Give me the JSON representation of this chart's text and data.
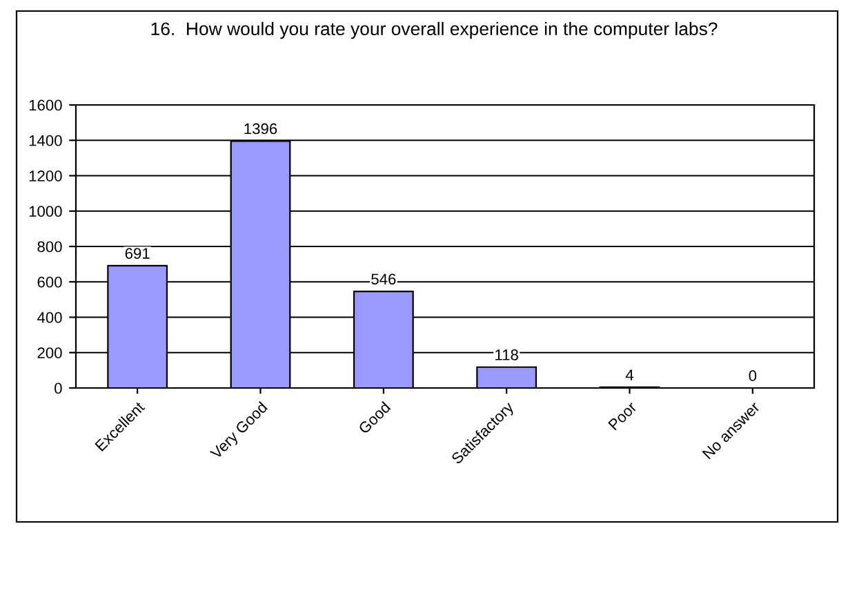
{
  "chart_data": {
    "type": "bar",
    "title": "16.  How would you rate your overall experience in the computer labs?",
    "categories": [
      "Excellent",
      "Very Good",
      "Good",
      "Satisfactory",
      "Poor",
      "No answer"
    ],
    "values": [
      691,
      1396,
      546,
      118,
      4,
      0
    ],
    "color": "#9999ff",
    "ylim": [
      0,
      1600
    ],
    "yticks": [
      0,
      200,
      400,
      600,
      800,
      1000,
      1200,
      1400,
      1600
    ],
    "grid": "y",
    "data_labels": true,
    "legend": false
  }
}
